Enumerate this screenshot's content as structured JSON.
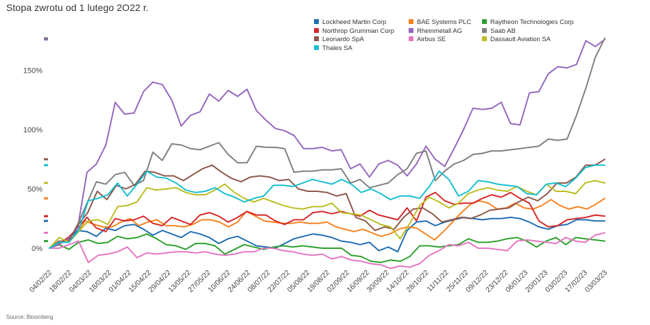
{
  "title": "Stopa zwrotu od 1 lutego 2O22 r.",
  "source": "Source: Bloomberg",
  "chart_data": {
    "type": "line",
    "title": "Stopa zwrotu od 1 lutego 2O22 r.",
    "y_ticks": [
      0,
      50,
      100,
      150
    ],
    "y_tick_labels": [
      "0%",
      "50%",
      "100%",
      "150%"
    ],
    "ylim": [
      -25,
      182
    ],
    "grid": false,
    "legend_position": "top-right",
    "x_tick_labels": [
      "04/02/22",
      "18/02/22",
      "04/03/22",
      "18/03/22",
      "01/04/22",
      "15/04/22",
      "29/04/22",
      "13/05/22",
      "27/05/22",
      "10/06/22",
      "24/06/22",
      "08/07/22",
      "22/07/22",
      "05/08/22",
      "19/08/22",
      "02/09/22",
      "16/09/22",
      "30/09/22",
      "14/10/22",
      "28/10/22",
      "11/11/22",
      "25/11/22",
      "09/12/22",
      "23/12/22",
      "06/01/23",
      "20/01/23",
      "03/02/23",
      "17/02/23",
      "03/03/23"
    ],
    "series": [
      {
        "name": "Lockheed Martin Corp",
        "color": "#1f6db3",
        "values": [
          0,
          5,
          8,
          15,
          14,
          10,
          17,
          15,
          19,
          20,
          16,
          11,
          15,
          12,
          9,
          14,
          12,
          9,
          4,
          8,
          10,
          6,
          2,
          1,
          0,
          4,
          8,
          10,
          12,
          11,
          9,
          6,
          5,
          3,
          5,
          -2,
          1,
          -3,
          15,
          22,
          23,
          19,
          22,
          24,
          26,
          25,
          24,
          25,
          25,
          26,
          25,
          22,
          18,
          16,
          19,
          20,
          24,
          24,
          23,
          23
        ]
      },
      {
        "name": "BAE Systems PLC",
        "color": "#f58220",
        "values": [
          0,
          6,
          6,
          12,
          23,
          20,
          18,
          18,
          22,
          25,
          19,
          22,
          24,
          19,
          19,
          18,
          20,
          24,
          24,
          22,
          18,
          22,
          31,
          27,
          23,
          22,
          21,
          21,
          22,
          21,
          21,
          22,
          18,
          16,
          14,
          16,
          13,
          10,
          12,
          16,
          18,
          17,
          12,
          7,
          14,
          22,
          30,
          37,
          40,
          38,
          33,
          34,
          38,
          34,
          33,
          36,
          41,
          36,
          33,
          35,
          33,
          37,
          42
        ]
      },
      {
        "name": "Raytheon Technologies Corp",
        "color": "#2ca02c",
        "values": [
          0,
          3,
          -1,
          5,
          7,
          4,
          5,
          10,
          8,
          9,
          12,
          8,
          3,
          2,
          -1,
          4,
          4,
          2,
          -5,
          -1,
          3,
          1,
          -1,
          1,
          2,
          1,
          2,
          1,
          0,
          0,
          0,
          -6,
          -7,
          -11,
          -12,
          -10,
          -11,
          -7,
          2,
          2,
          1,
          2,
          3,
          8,
          5,
          5,
          6,
          8,
          9,
          6,
          1,
          6,
          9,
          3,
          9,
          8,
          7,
          6
        ]
      },
      {
        "name": "Northrop Grumman Corp",
        "color": "#d62728",
        "values": [
          0,
          4,
          9,
          17,
          26,
          17,
          14,
          25,
          23,
          24,
          27,
          21,
          19,
          26,
          23,
          20,
          28,
          30,
          27,
          22,
          26,
          31,
          28,
          28,
          23,
          20,
          24,
          24,
          30,
          31,
          29,
          31,
          29,
          27,
          32,
          28,
          26,
          24,
          34,
          23,
          43,
          47,
          40,
          37,
          38,
          38,
          42,
          45,
          43,
          47,
          42,
          38,
          23,
          18,
          19,
          24,
          25,
          26,
          28,
          27
        ]
      },
      {
        "name": "Rheinmetall AG",
        "color": "#9467bd",
        "values": [
          0,
          3,
          8,
          17,
          64,
          71,
          87,
          123,
          113,
          114,
          132,
          140,
          138,
          125,
          103,
          112,
          115,
          130,
          124,
          133,
          128,
          134,
          116,
          108,
          101,
          99,
          95,
          84,
          84,
          85,
          82,
          83,
          67,
          71,
          60,
          71,
          74,
          70,
          61,
          71,
          86,
          75,
          69,
          84,
          100,
          118,
          117,
          118,
          123,
          105,
          104,
          131,
          132,
          147,
          153,
          152,
          155,
          175,
          170,
          176
        ]
      },
      {
        "name": "Saab AB",
        "color": "#7f7f7f",
        "values": [
          0,
          6,
          5,
          20,
          38,
          56,
          54,
          62,
          64,
          53,
          57,
          81,
          74,
          88,
          87,
          84,
          83,
          86,
          89,
          79,
          72,
          72,
          86,
          85,
          85,
          84,
          64,
          65,
          65,
          66,
          66,
          67,
          55,
          58,
          51,
          53,
          55,
          62,
          67,
          80,
          82,
          57,
          65,
          71,
          74,
          79,
          80,
          82,
          82,
          83,
          84,
          85,
          86,
          92,
          91,
          92,
          112,
          135,
          161,
          177
        ]
      },
      {
        "name": "Leonardo SpA",
        "color": "#8c564b",
        "values": [
          0,
          5,
          6,
          20,
          30,
          48,
          41,
          53,
          50,
          54,
          65,
          64,
          61,
          61,
          57,
          62,
          67,
          70,
          64,
          59,
          56,
          60,
          61,
          60,
          57,
          58,
          50,
          48,
          48,
          47,
          44,
          46,
          26,
          23,
          15,
          18,
          16,
          26,
          33,
          34,
          29,
          22,
          24,
          26,
          25,
          28,
          32,
          33,
          34,
          39,
          43,
          40,
          46,
          55,
          55,
          60,
          70,
          70,
          75
        ]
      },
      {
        "name": "Airbus SE",
        "color": "#e377c2",
        "values": [
          0,
          0,
          3,
          6,
          -12,
          -6,
          -5,
          -3,
          1,
          -8,
          -4,
          -5,
          -4,
          -3,
          -3,
          -4,
          -3,
          -5,
          -6,
          -5,
          -3,
          -3,
          0,
          0,
          -2,
          -3,
          -5,
          -6,
          -5,
          -9,
          -7,
          -10,
          -11,
          -13,
          -14,
          -17,
          -15,
          -16,
          -13,
          -6,
          -2,
          3,
          2,
          5,
          0,
          0,
          -1,
          -2,
          6,
          7,
          6,
          5,
          4,
          9,
          6,
          5,
          11,
          13
        ]
      },
      {
        "name": "Dassault Aviation SA",
        "color": "#bcbd22",
        "values": [
          0,
          9,
          5,
          14,
          23,
          24,
          20,
          35,
          36,
          39,
          51,
          49,
          50,
          51,
          47,
          45,
          45,
          49,
          54,
          47,
          42,
          39,
          42,
          39,
          36,
          34,
          33,
          35,
          35,
          38,
          30,
          29,
          28,
          24,
          20,
          18,
          8,
          21,
          36,
          43,
          39,
          34,
          38,
          46,
          49,
          51,
          49,
          48,
          52,
          48,
          45,
          54,
          48,
          48,
          46,
          55,
          57,
          55
        ]
      },
      {
        "name": "Thales SA",
        "color": "#17becf",
        "values": [
          0,
          5,
          5,
          15,
          40,
          42,
          45,
          55,
          44,
          54,
          65,
          60,
          59,
          55,
          49,
          47,
          48,
          51,
          46,
          43,
          39,
          42,
          44,
          53,
          53,
          52,
          55,
          58,
          56,
          54,
          58,
          54,
          47,
          50,
          46,
          41,
          44,
          44,
          42,
          52,
          65,
          58,
          44,
          48,
          57,
          56,
          54,
          53,
          52,
          46,
          45,
          54,
          55,
          52,
          59,
          68,
          70,
          70
        ]
      }
    ]
  }
}
